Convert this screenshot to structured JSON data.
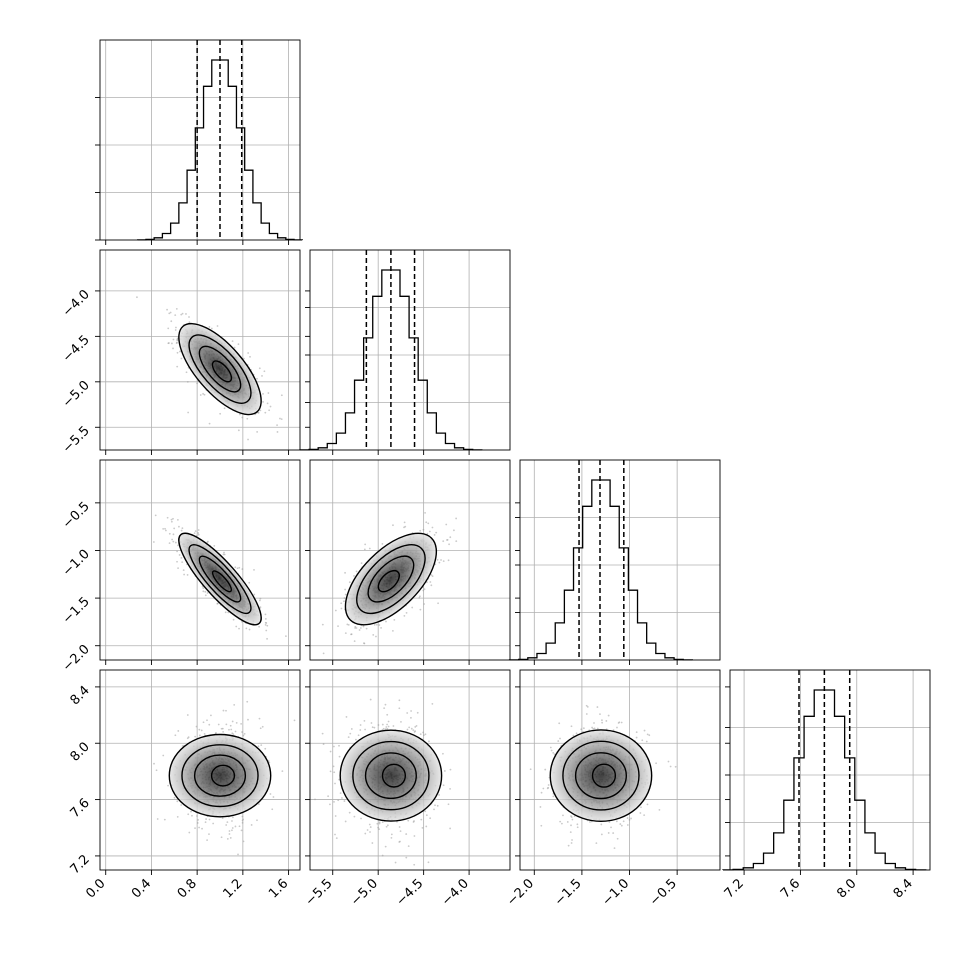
{
  "chart_data": {
    "type": "corner",
    "dimensions": 4,
    "parameters": [
      {
        "index": 0,
        "ticks": [
          0.0,
          0.4,
          0.8,
          1.2,
          1.6
        ],
        "tick_labels": [
          "0.0",
          "0.4",
          "0.8",
          "1.2",
          "1.6"
        ],
        "range": [
          -0.05,
          1.7
        ],
        "mean": 1.0,
        "sd": 0.18,
        "quantiles": [
          0.8,
          1.0,
          1.19
        ]
      },
      {
        "index": 1,
        "ticks": [
          -5.5,
          -5.0,
          -4.5,
          -4.0
        ],
        "tick_labels": [
          "−5.5",
          "−5.0",
          "−4.5",
          "−4.0"
        ],
        "range": [
          -5.75,
          -3.55
        ],
        "mean": -4.86,
        "sd": 0.25,
        "quantiles": [
          -5.13,
          -4.86,
          -4.6
        ]
      },
      {
        "index": 2,
        "ticks": [
          -2.0,
          -1.5,
          -1.0,
          -0.5
        ],
        "tick_labels": [
          "−2.0",
          "−1.5",
          "−1.0",
          "−0.5"
        ],
        "range": [
          -2.15,
          -0.05
        ],
        "mean": -1.3,
        "sd": 0.24,
        "quantiles": [
          -1.53,
          -1.31,
          -1.06
        ]
      },
      {
        "index": 3,
        "ticks": [
          7.2,
          7.6,
          8.0,
          8.4
        ],
        "tick_labels": [
          "7.2",
          "7.6",
          "8.0",
          "8.4"
        ],
        "range": [
          7.1,
          8.52
        ],
        "mean": 7.77,
        "sd": 0.18,
        "quantiles": [
          7.59,
          7.77,
          7.95
        ]
      }
    ],
    "correlations": [
      {
        "pair": [
          0,
          1
        ],
        "rho": -0.7
      },
      {
        "pair": [
          0,
          2
        ],
        "rho": -0.85
      },
      {
        "pair": [
          1,
          2
        ],
        "rho": 0.6
      },
      {
        "pair": [
          0,
          3
        ],
        "rho": 0.0
      },
      {
        "pair": [
          1,
          3
        ],
        "rho": 0.0
      },
      {
        "pair": [
          2,
          3
        ],
        "rho": 0.0
      }
    ],
    "histogram_bins": 20,
    "contour_levels_sigma": [
      0.5,
      1.0,
      1.5,
      2.0
    ],
    "grid": true,
    "line_color": "#000000",
    "scatter_color": "#9e9e9e",
    "grid_color": "#b0b0b0"
  }
}
